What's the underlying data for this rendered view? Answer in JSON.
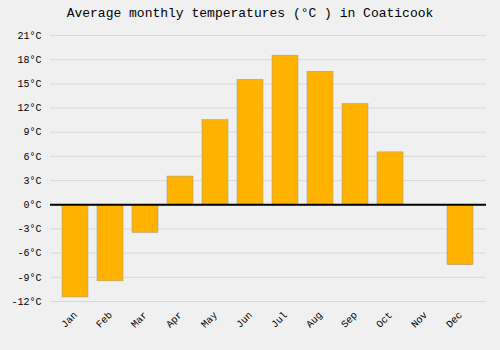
{
  "chart_data": {
    "type": "bar",
    "title": "Average monthly temperatures (°C ) in Coaticook",
    "categories": [
      "Jan",
      "Feb",
      "Mar",
      "Apr",
      "May",
      "Jun",
      "Jul",
      "Aug",
      "Sep",
      "Oct",
      "Nov",
      "Dec"
    ],
    "values": [
      -11.5,
      -9.5,
      -3.5,
      3.5,
      10.5,
      15.5,
      18.5,
      16.5,
      12.5,
      6.5,
      0.0,
      -7.5
    ],
    "color": "#FFB300",
    "ylim": [
      -12,
      21
    ],
    "yticks": [
      {
        "value": -12,
        "label": "-12°C"
      },
      {
        "value": -9,
        "label": "-9°C"
      },
      {
        "value": -6,
        "label": "-6°C"
      },
      {
        "value": -3,
        "label": "-3°C"
      },
      {
        "value": 0,
        "label": "0°C"
      },
      {
        "value": 3,
        "label": "3°C"
      },
      {
        "value": 6,
        "label": "6°C"
      },
      {
        "value": 9,
        "label": "9°C"
      },
      {
        "value": 12,
        "label": "12°C"
      },
      {
        "value": 15,
        "label": "15°C"
      },
      {
        "value": 18,
        "label": "18°C"
      },
      {
        "value": 21,
        "label": "21°C"
      }
    ],
    "grid": true
  }
}
